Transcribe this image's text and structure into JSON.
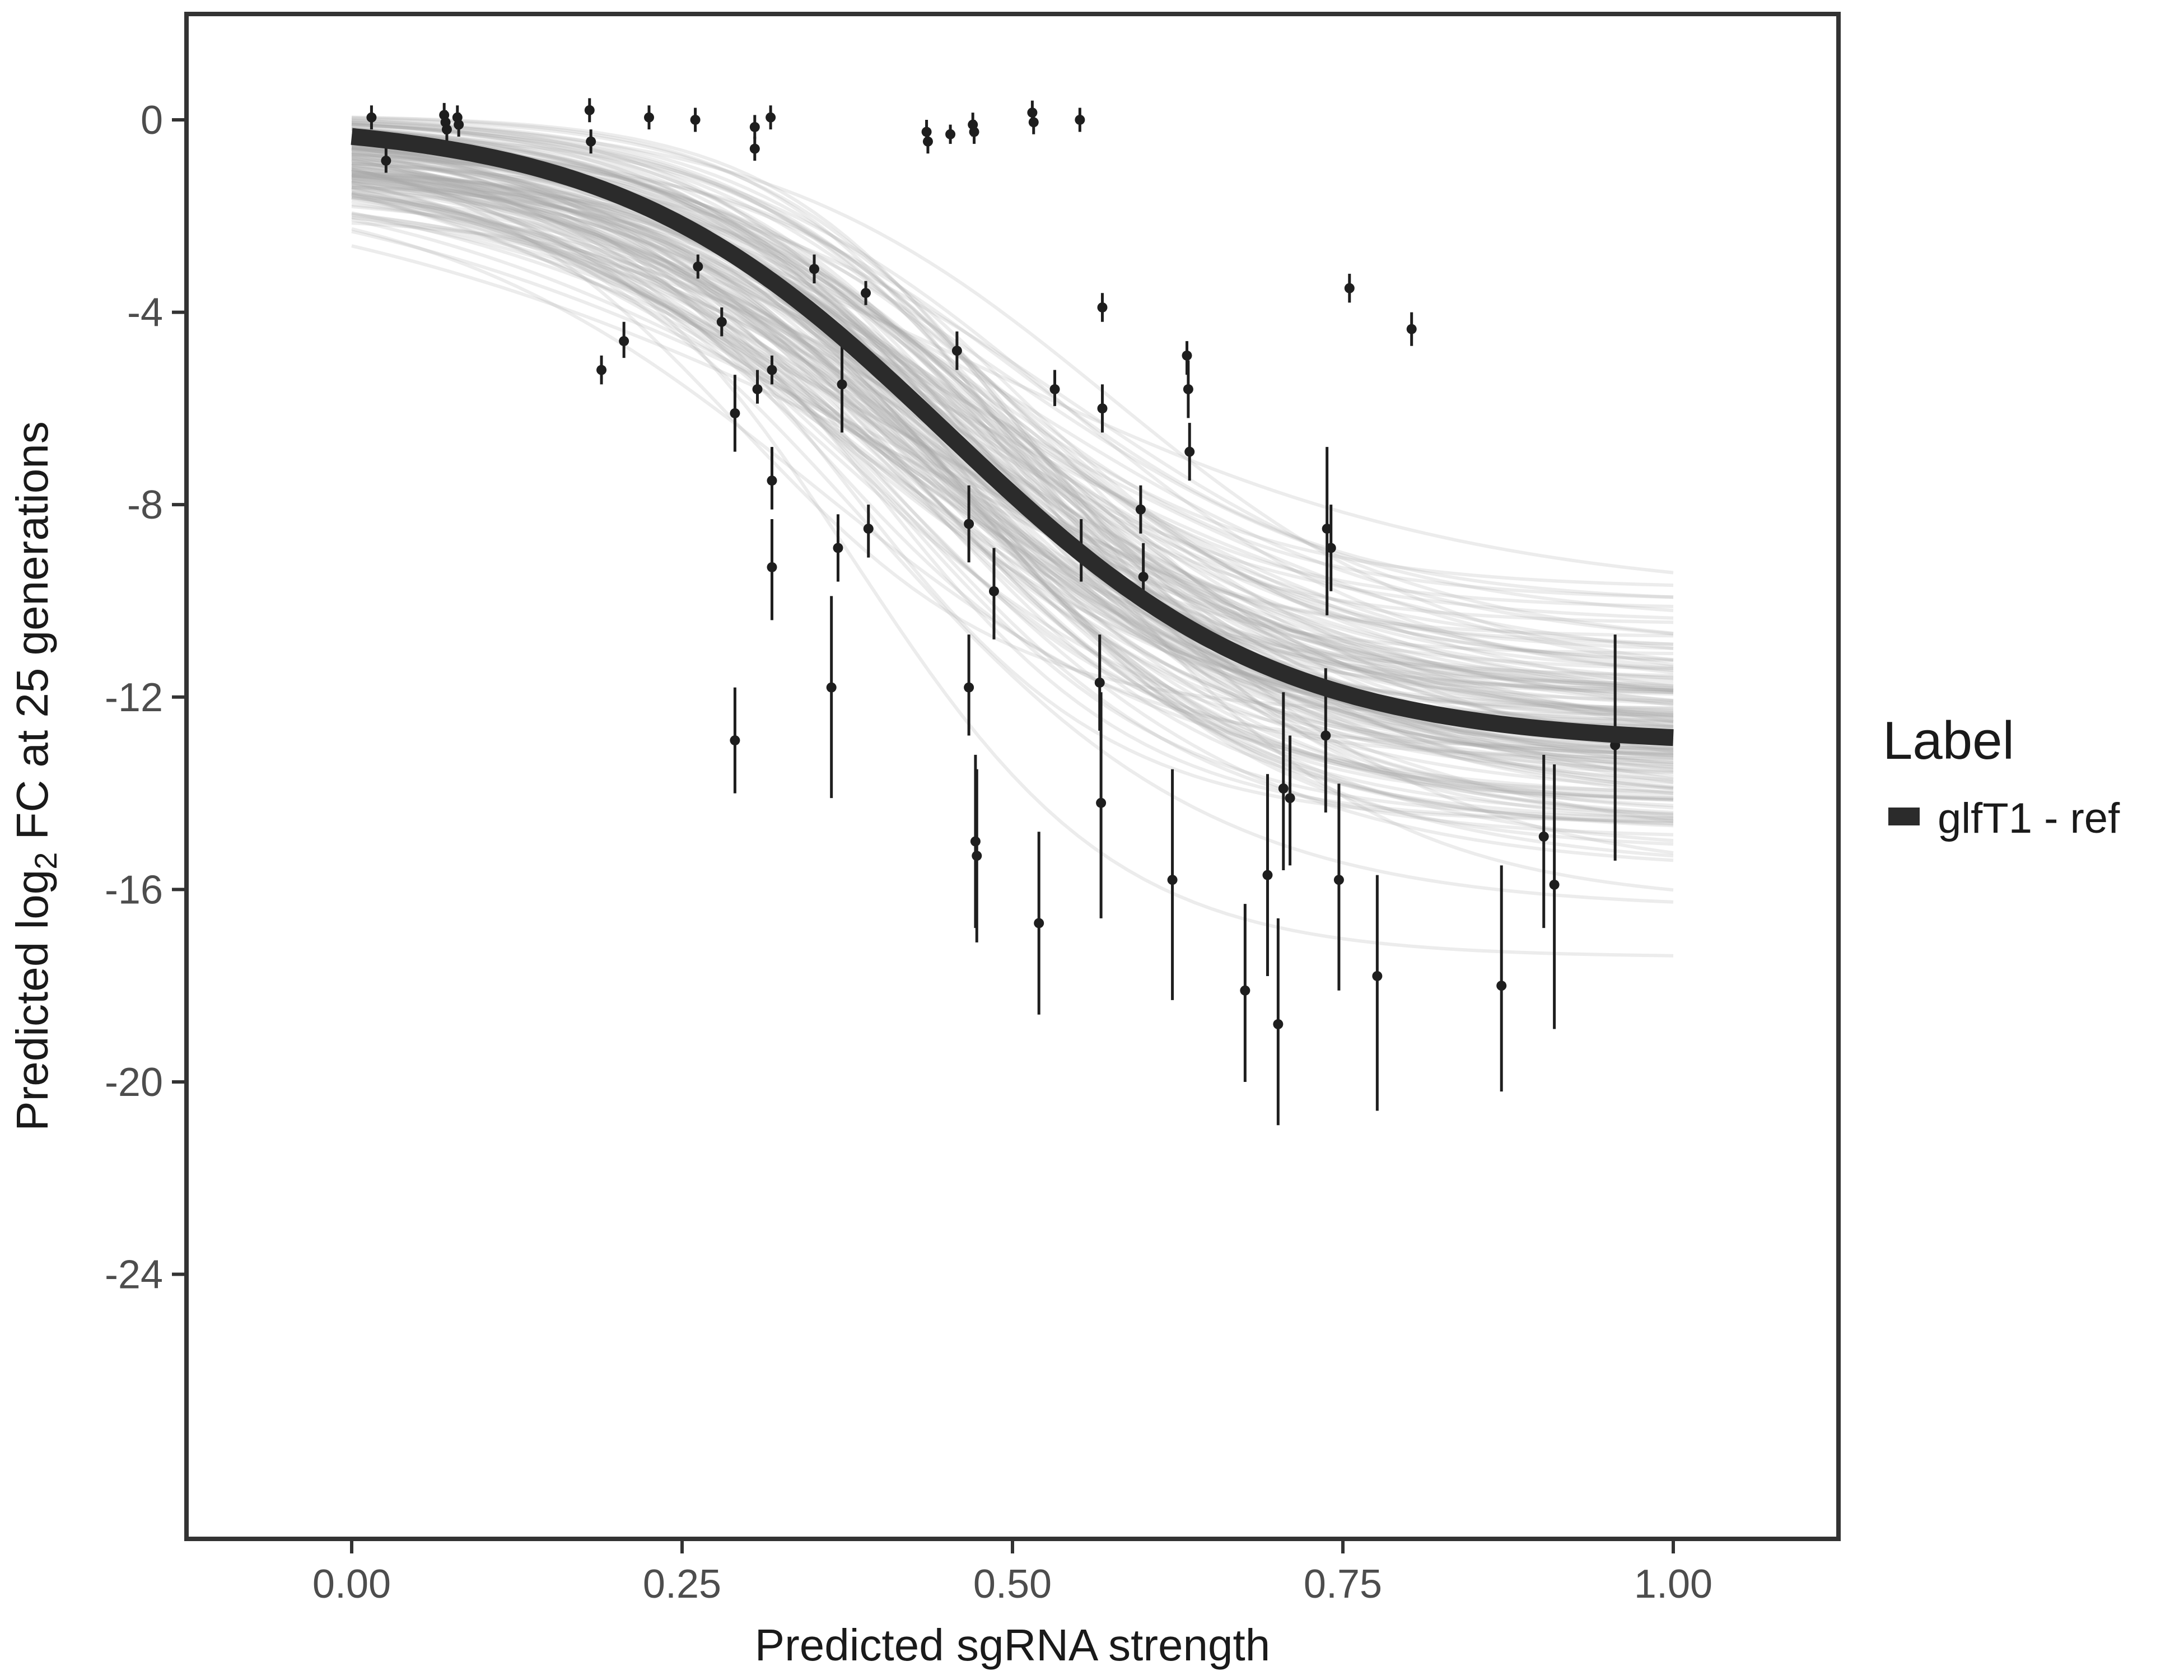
{
  "chart_data": {
    "type": "line",
    "xlabel": "Predicted sgRNA strength",
    "ylabel": {
      "prefix": "Predicted  log",
      "subscript": "2",
      "suffix": " FC at 25 generations"
    },
    "xlim": [
      -0.125,
      1.125
    ],
    "ylim": [
      -29.5,
      2.2
    ],
    "x_ticks": [
      0.0,
      0.25,
      0.5,
      0.75,
      1.0
    ],
    "x_tick_labels": [
      "0.00",
      "0.25",
      "0.50",
      "0.75",
      "1.00"
    ],
    "y_ticks": [
      0,
      -4,
      -8,
      -12,
      -16,
      -20,
      -24
    ],
    "y_tick_labels": [
      "0",
      "-4",
      "-8",
      "-12",
      "-16",
      "-20",
      "-24"
    ],
    "grid": false,
    "legend": {
      "title": "Label",
      "position": "right",
      "entries": [
        {
          "label": "glfT1 - ref",
          "color": "#2b2b2b"
        }
      ]
    },
    "colors": {
      "fit_line": "#2b2b2b",
      "posterior_draws": "#a9a9a9",
      "points": "#1e1e1e",
      "frame": "#333333"
    },
    "fit_curve": {
      "model": "logistic",
      "upper": 0.0,
      "lower": -13.0,
      "midpoint": 0.45,
      "rate": 8.0
    },
    "posterior_draws": {
      "count": 160,
      "x_range": [
        0.0,
        1.0
      ]
    },
    "points": [
      {
        "x": 0.015,
        "y": 0.05,
        "lo": -0.2,
        "hi": 0.3
      },
      {
        "x": 0.026,
        "y": -0.85,
        "lo": -1.1,
        "hi": -0.55
      },
      {
        "x": 0.07,
        "y": 0.1,
        "lo": -0.2,
        "hi": 0.35
      },
      {
        "x": 0.071,
        "y": -0.05,
        "lo": -0.3,
        "hi": 0.2
      },
      {
        "x": 0.072,
        "y": -0.2,
        "lo": -0.45,
        "hi": 0.05
      },
      {
        "x": 0.08,
        "y": 0.05,
        "lo": -0.2,
        "hi": 0.3
      },
      {
        "x": 0.081,
        "y": -0.1,
        "lo": -0.35,
        "hi": 0.15
      },
      {
        "x": 0.18,
        "y": 0.2,
        "lo": -0.05,
        "hi": 0.45
      },
      {
        "x": 0.181,
        "y": -0.45,
        "lo": -0.7,
        "hi": -0.2
      },
      {
        "x": 0.189,
        "y": -5.2,
        "lo": -5.5,
        "hi": -4.9
      },
      {
        "x": 0.206,
        "y": -4.6,
        "lo": -4.95,
        "hi": -4.2
      },
      {
        "x": 0.225,
        "y": 0.05,
        "lo": -0.2,
        "hi": 0.3
      },
      {
        "x": 0.26,
        "y": 0.0,
        "lo": -0.25,
        "hi": 0.25
      },
      {
        "x": 0.262,
        "y": -3.05,
        "lo": -3.3,
        "hi": -2.8
      },
      {
        "x": 0.28,
        "y": -4.2,
        "lo": -4.5,
        "hi": -3.9
      },
      {
        "x": 0.29,
        "y": -6.1,
        "lo": -6.9,
        "hi": -5.3
      },
      {
        "x": 0.29,
        "y": -12.9,
        "lo": -14.0,
        "hi": -11.8
      },
      {
        "x": 0.305,
        "y": -0.15,
        "lo": -0.4,
        "hi": 0.1
      },
      {
        "x": 0.305,
        "y": -0.6,
        "lo": -0.85,
        "hi": -0.35
      },
      {
        "x": 0.307,
        "y": -5.6,
        "lo": -5.9,
        "hi": -5.2
      },
      {
        "x": 0.317,
        "y": 0.05,
        "lo": -0.2,
        "hi": 0.3
      },
      {
        "x": 0.318,
        "y": -5.2,
        "lo": -5.5,
        "hi": -4.9
      },
      {
        "x": 0.318,
        "y": -7.5,
        "lo": -8.1,
        "hi": -6.8
      },
      {
        "x": 0.318,
        "y": -9.3,
        "lo": -10.4,
        "hi": -8.3
      },
      {
        "x": 0.35,
        "y": -3.1,
        "lo": -3.4,
        "hi": -2.8
      },
      {
        "x": 0.363,
        "y": -11.8,
        "lo": -14.1,
        "hi": -9.9
      },
      {
        "x": 0.368,
        "y": -8.9,
        "lo": -9.6,
        "hi": -8.2
      },
      {
        "x": 0.371,
        "y": -5.5,
        "lo": -6.5,
        "hi": -4.7
      },
      {
        "x": 0.389,
        "y": -3.6,
        "lo": -3.85,
        "hi": -3.35
      },
      {
        "x": 0.391,
        "y": -8.5,
        "lo": -9.1,
        "hi": -8.0
      },
      {
        "x": 0.435,
        "y": -0.25,
        "lo": -0.5,
        "hi": 0.0
      },
      {
        "x": 0.436,
        "y": -0.45,
        "lo": -0.7,
        "hi": -0.2
      },
      {
        "x": 0.453,
        "y": -0.3,
        "lo": -0.5,
        "hi": -0.1
      },
      {
        "x": 0.458,
        "y": -4.8,
        "lo": -5.2,
        "hi": -4.4
      },
      {
        "x": 0.467,
        "y": -8.4,
        "lo": -9.2,
        "hi": -7.6
      },
      {
        "x": 0.467,
        "y": -11.8,
        "lo": -12.8,
        "hi": -10.7
      },
      {
        "x": 0.47,
        "y": -0.1,
        "lo": -0.35,
        "hi": 0.15
      },
      {
        "x": 0.471,
        "y": -0.25,
        "lo": -0.5,
        "hi": 0.0
      },
      {
        "x": 0.472,
        "y": -15.0,
        "lo": -16.8,
        "hi": -13.2
      },
      {
        "x": 0.473,
        "y": -15.3,
        "lo": -17.1,
        "hi": -13.5
      },
      {
        "x": 0.486,
        "y": -9.8,
        "lo": -10.8,
        "hi": -8.9
      },
      {
        "x": 0.515,
        "y": 0.15,
        "lo": -0.1,
        "hi": 0.4
      },
      {
        "x": 0.516,
        "y": -0.05,
        "lo": -0.3,
        "hi": 0.2
      },
      {
        "x": 0.52,
        "y": -16.7,
        "lo": -18.6,
        "hi": -14.8
      },
      {
        "x": 0.551,
        "y": 0.0,
        "lo": -0.25,
        "hi": 0.25
      },
      {
        "x": 0.552,
        "y": -8.95,
        "lo": -9.6,
        "hi": -8.3
      },
      {
        "x": 0.532,
        "y": -5.6,
        "lo": -5.95,
        "hi": -5.2
      },
      {
        "x": 0.566,
        "y": -11.7,
        "lo": -12.7,
        "hi": -10.7
      },
      {
        "x": 0.567,
        "y": -14.2,
        "lo": -16.6,
        "hi": -11.9
      },
      {
        "x": 0.568,
        "y": -3.9,
        "lo": -4.2,
        "hi": -3.6
      },
      {
        "x": 0.568,
        "y": -6.0,
        "lo": -6.5,
        "hi": -5.5
      },
      {
        "x": 0.597,
        "y": -8.1,
        "lo": -8.6,
        "hi": -7.6
      },
      {
        "x": 0.599,
        "y": -9.5,
        "lo": -10.0,
        "hi": -8.8
      },
      {
        "x": 0.621,
        "y": -15.8,
        "lo": -18.3,
        "hi": -13.5
      },
      {
        "x": 0.632,
        "y": -4.9,
        "lo": -5.3,
        "hi": -4.6
      },
      {
        "x": 0.633,
        "y": -5.6,
        "lo": -6.2,
        "hi": -5.0
      },
      {
        "x": 0.634,
        "y": -6.9,
        "lo": -7.5,
        "hi": -6.3
      },
      {
        "x": 0.676,
        "y": -18.1,
        "lo": -20.0,
        "hi": -16.3
      },
      {
        "x": 0.693,
        "y": -15.7,
        "lo": -17.8,
        "hi": -13.6
      },
      {
        "x": 0.701,
        "y": -18.8,
        "lo": -20.9,
        "hi": -16.6
      },
      {
        "x": 0.705,
        "y": -13.9,
        "lo": -15.6,
        "hi": -11.9
      },
      {
        "x": 0.71,
        "y": -14.1,
        "lo": -15.5,
        "hi": -12.8
      },
      {
        "x": 0.737,
        "y": -12.8,
        "lo": -14.4,
        "hi": -11.4
      },
      {
        "x": 0.738,
        "y": -8.5,
        "lo": -10.3,
        "hi": -6.8
      },
      {
        "x": 0.741,
        "y": -8.9,
        "lo": -9.8,
        "hi": -8.0
      },
      {
        "x": 0.747,
        "y": -15.8,
        "lo": -18.1,
        "hi": -13.8
      },
      {
        "x": 0.755,
        "y": -3.5,
        "lo": -3.8,
        "hi": -3.2
      },
      {
        "x": 0.776,
        "y": -17.8,
        "lo": -20.6,
        "hi": -15.7
      },
      {
        "x": 0.802,
        "y": -4.35,
        "lo": -4.7,
        "hi": -4.0
      },
      {
        "x": 0.87,
        "y": -18.0,
        "lo": -20.2,
        "hi": -15.5
      },
      {
        "x": 0.902,
        "y": -14.9,
        "lo": -16.8,
        "hi": -13.2
      },
      {
        "x": 0.91,
        "y": -15.9,
        "lo": -18.9,
        "hi": -13.4
      },
      {
        "x": 0.956,
        "y": -13.0,
        "lo": -15.4,
        "hi": -10.7
      }
    ]
  }
}
